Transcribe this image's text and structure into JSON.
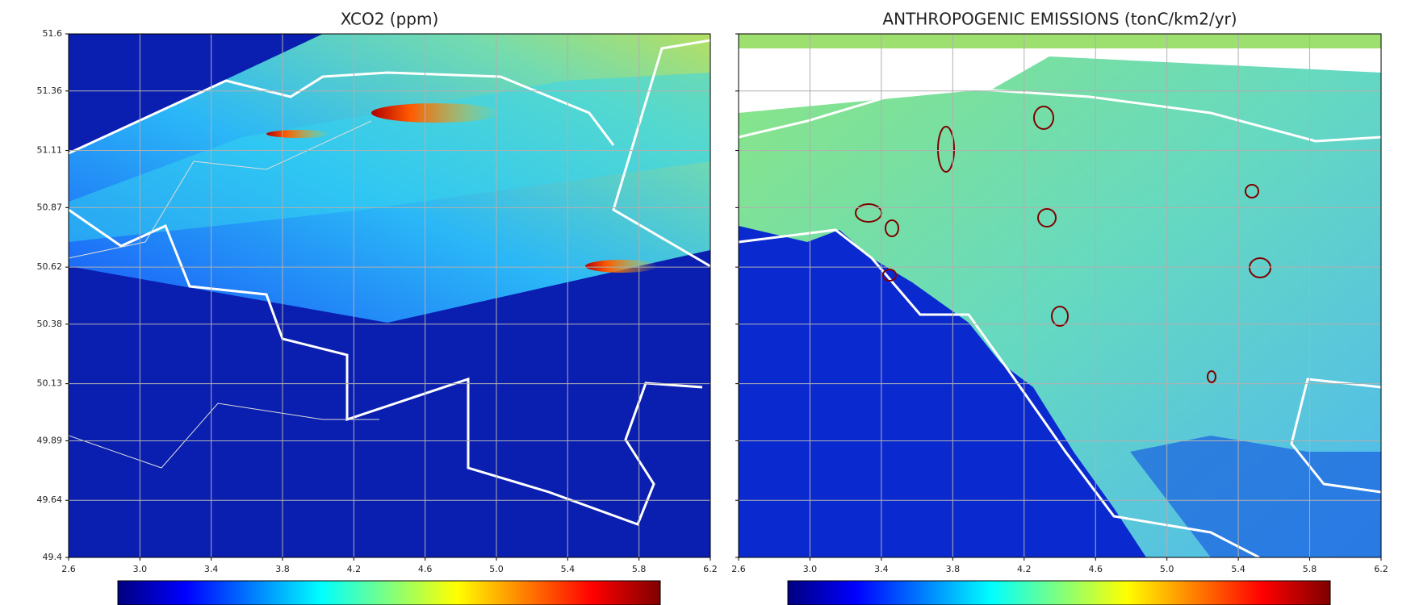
{
  "chart_data": [
    {
      "type": "heatmap",
      "title": "XCO2 (ppm)",
      "colormap": "jet",
      "xlim": [
        2.6,
        6.2
      ],
      "ylim": [
        49.4,
        51.6
      ],
      "grid": true,
      "ytick_labels": true,
      "xticks": [
        2.6,
        {
          "value": 3,
          "label": "3.0"
        },
        3.4,
        3.8,
        4.2,
        4.6,
        {
          "value": 5,
          "label": "5.0"
        },
        5.4,
        5.8,
        6.2
      ],
      "yticks": [
        49.4,
        49.64,
        49.89,
        50.13,
        50.38,
        50.62,
        50.87,
        51.11,
        51.36,
        51.6
      ]
    },
    {
      "type": "heatmap",
      "title": "ANTHROPOGENIC EMISSIONS (tonC/km2/yr)",
      "colormap": "jet",
      "xlim": [
        2.6,
        6.2
      ],
      "ylim": [
        49.4,
        51.6
      ],
      "grid": true,
      "ytick_labels": false,
      "xticks": [
        2.6,
        {
          "value": 3,
          "label": "3.0"
        },
        3.4,
        3.8,
        4.2,
        4.6,
        {
          "value": 5,
          "label": "5.0"
        },
        5.4,
        5.8,
        6.2
      ],
      "yticks": [
        49.4,
        49.64,
        49.89,
        50.13,
        50.38,
        50.62,
        50.87,
        51.11,
        51.36,
        51.6
      ]
    }
  ]
}
